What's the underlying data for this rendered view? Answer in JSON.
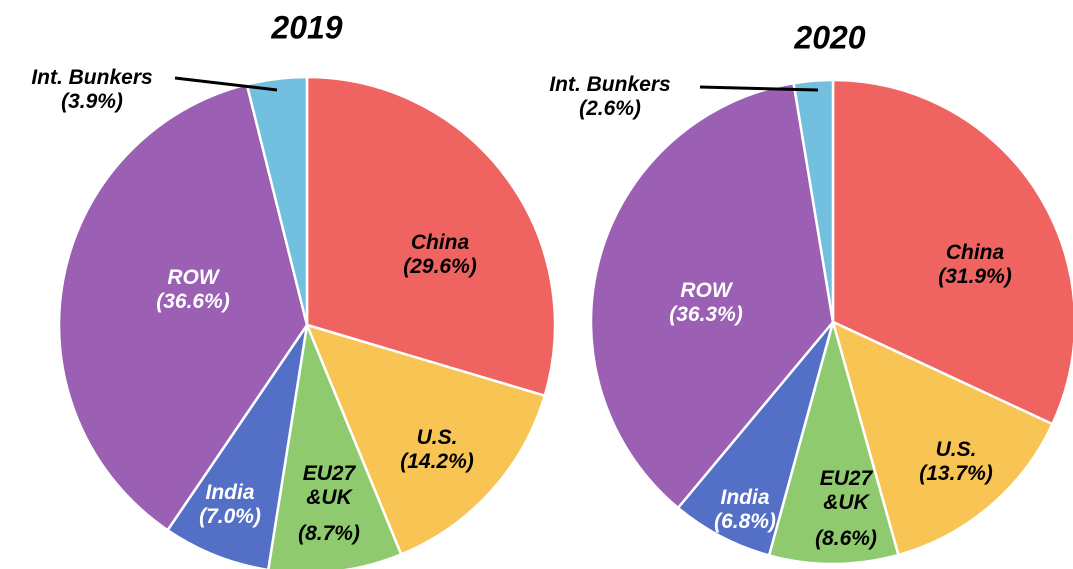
{
  "chart_data": [
    {
      "type": "pie",
      "title": "2019",
      "categories": [
        "China",
        "U.S.",
        "EU27 &UK",
        "India",
        "ROW",
        "Int. Bunkers"
      ],
      "values": [
        29.6,
        14.2,
        8.7,
        7.0,
        36.6,
        3.9
      ],
      "value_labels": [
        "(29.6%)",
        "(14.2%)",
        "(8.7%)",
        "(7.0%)",
        "(36.6%)",
        "(3.9%)"
      ],
      "colors": [
        "#ef6461",
        "#f8c453",
        "#8fcb6e",
        "#5470c6",
        "#9b5fb4",
        "#72bfdf"
      ]
    },
    {
      "type": "pie",
      "title": "2020",
      "categories": [
        "China",
        "U.S.",
        "EU27 &UK",
        "India",
        "ROW",
        "Int. Bunkers"
      ],
      "values": [
        31.9,
        13.7,
        8.6,
        6.8,
        36.3,
        2.6
      ],
      "value_labels": [
        "(31.9%)",
        "(13.7%)",
        "(8.6%)",
        "(6.8%)",
        "(36.3%)",
        "(2.6%)"
      ],
      "colors": [
        "#ef6461",
        "#f8c453",
        "#8fcb6e",
        "#5470c6",
        "#9b5fb4",
        "#72bfdf"
      ]
    }
  ]
}
